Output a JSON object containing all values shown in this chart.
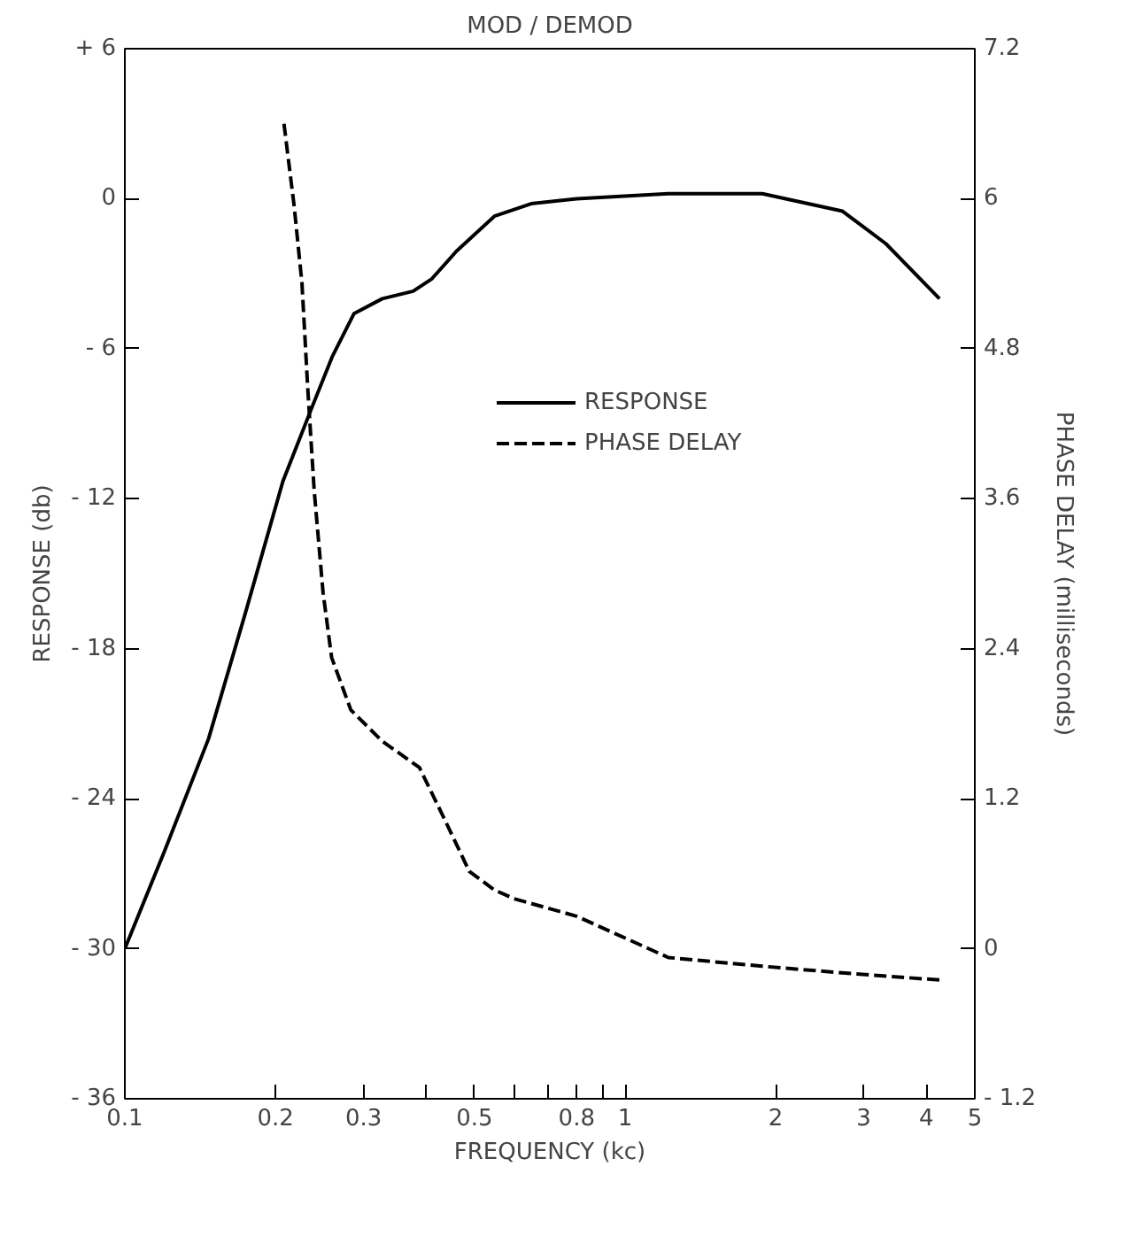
{
  "chart_data": {
    "type": "line",
    "title": "MOD / DEMOD",
    "xlabel": "FREQUENCY (kc)",
    "ylabel": "RESPONSE (db)",
    "y2label": "PHASE DELAY (milliseconds)",
    "log": "x",
    "grid": false,
    "legend": "right",
    "marker": "none",
    "xlim": [
      0.1,
      5
    ],
    "xticks": [
      0.1,
      0.2,
      0.3,
      {
        "value": 0.4,
        "label": null
      },
      0.5,
      {
        "value": 0.6,
        "label": null
      },
      {
        "value": 0.7,
        "label": null
      },
      0.8,
      {
        "value": 0.9,
        "label": null
      },
      1,
      2,
      3,
      4,
      5
    ],
    "ylim": [
      -36,
      6
    ],
    "yticks": [
      {
        "value": -36,
        "label": "- 36"
      },
      {
        "value": -30,
        "label": "- 30"
      },
      {
        "value": -24,
        "label": "- 24"
      },
      {
        "value": -18,
        "label": "- 18"
      },
      {
        "value": -12,
        "label": "- 12"
      },
      {
        "value": -6,
        "label": "- 6"
      },
      0,
      {
        "value": 6,
        "label": "+ 6"
      }
    ],
    "y2lim": [
      -1.2,
      7.2
    ],
    "y2ticks": [
      {
        "value": -1.2,
        "label": "- 1.2"
      },
      0,
      1.2,
      2.4,
      3.6,
      4.8,
      6.0,
      7.2
    ],
    "series": [
      {
        "name": "RESPONSE",
        "color": "#000000",
        "line_style": "solid",
        "x": [
          0.1,
          0.12,
          0.147,
          0.174,
          0.207,
          0.236,
          0.26,
          0.287,
          0.327,
          0.377,
          0.411,
          0.46,
          0.548,
          0.649,
          0.8,
          1.22,
          1.88,
          2.72,
          3.32,
          4.25
        ],
        "values": [
          -30,
          -26.1,
          -21.6,
          -16.6,
          -11.3,
          -8.4,
          -6.3,
          -4.6,
          -4.0,
          -3.7,
          -3.2,
          -2.1,
          -0.7,
          -0.2,
          0,
          0.2,
          0.2,
          -0.5,
          -1.8,
          -4.0
        ]
      },
      {
        "name": "PHASE DELAY",
        "color": "#000000",
        "line_style": "dashed",
        "axis": "y2",
        "x": [
          0.208,
          0.218,
          0.226,
          0.232,
          0.239,
          0.249,
          0.259,
          0.283,
          0.327,
          0.388,
          0.435,
          0.488,
          0.548,
          0.6,
          0.8,
          1.22,
          1.88,
          2.87,
          4.25
        ],
        "values": [
          6.6,
          5.94,
          5.32,
          4.49,
          3.67,
          2.85,
          2.33,
          1.91,
          1.66,
          1.45,
          1.04,
          0.62,
          0.47,
          0.4,
          0.26,
          -0.07,
          -0.14,
          -0.2,
          -0.25
        ]
      }
    ]
  }
}
